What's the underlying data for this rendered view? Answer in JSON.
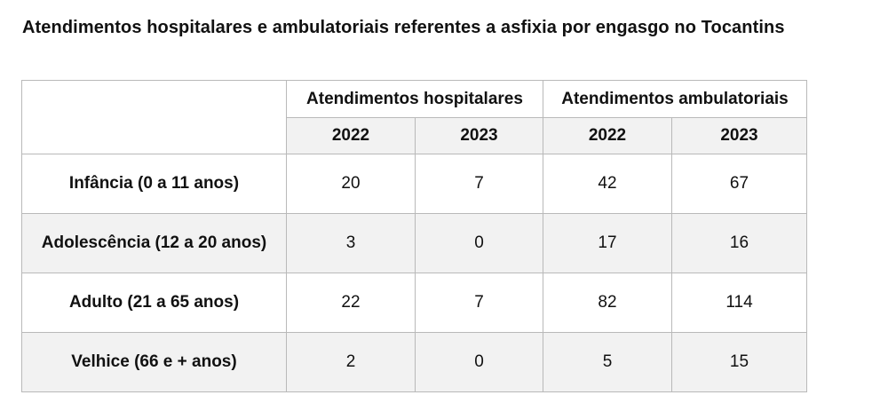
{
  "title": "Atendimentos hospitalares e ambulatoriais referentes a asfixia por engasgo no Tocantins",
  "table": {
    "groups": [
      "Atendimentos hospitalares",
      "Atendimentos ambulatoriais"
    ],
    "years": [
      "2022",
      "2023",
      "2022",
      "2023"
    ],
    "rows": [
      {
        "label": "Infância (0 a 11 anos)",
        "values": [
          "20",
          "7",
          "42",
          "67"
        ]
      },
      {
        "label": "Adolescência (12 a 20 anos)",
        "values": [
          "3",
          "0",
          "17",
          "16"
        ]
      },
      {
        "label": "Adulto (21 a 65 anos)",
        "values": [
          "22",
          "7",
          "82",
          "114"
        ]
      },
      {
        "label": "Velhice (66 e + anos)",
        "values": [
          "2",
          "0",
          "5",
          "15"
        ]
      }
    ]
  }
}
